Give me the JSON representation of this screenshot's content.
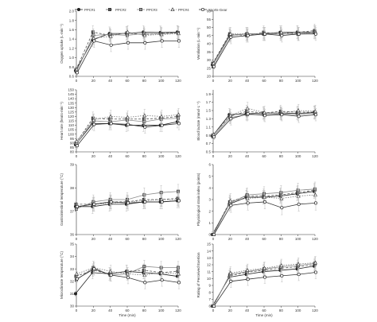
{
  "legend": {
    "entries": [
      {
        "label": "PPC#1",
        "marker": "filled-circle"
      },
      {
        "label": "PPC#2",
        "marker": "filled-square"
      },
      {
        "label": "PPC#3",
        "marker": "grey-square"
      },
      {
        "label": "PPC#4",
        "marker": "open-triangle"
      },
      {
        "label": "Sports-Gear",
        "marker": "open-circle"
      }
    ]
  },
  "chart_data": [
    {
      "type": "line",
      "ylabel": "Oxygen uptake (L·min⁻¹)",
      "xlabel": "",
      "x": [
        0,
        20,
        40,
        60,
        80,
        100,
        120
      ],
      "x_ticks": [
        "0",
        "20",
        "40",
        "60",
        "80",
        "100",
        "120"
      ],
      "ylim": [
        0.6,
        2.0
      ],
      "y_ticks": [
        "0.6",
        "0.8",
        "1.0",
        "1.2",
        "1.4",
        "1.6",
        "1.8",
        "2.0"
      ],
      "series": [
        {
          "name": "PPC#1",
          "values": [
            0.72,
            1.38,
            1.52,
            1.52,
            1.55,
            1.54,
            1.55
          ]
        },
        {
          "name": "PPC#2",
          "values": [
            0.74,
            1.55,
            1.48,
            1.53,
            1.5,
            1.52,
            1.54
          ]
        },
        {
          "name": "PPC#3",
          "values": [
            0.7,
            1.48,
            1.5,
            1.48,
            1.52,
            1.51,
            1.53
          ]
        },
        {
          "name": "PPC#4",
          "values": [
            0.75,
            1.42,
            1.46,
            1.55,
            1.48,
            1.5,
            1.52
          ]
        },
        {
          "name": "Sports-Gear",
          "values": [
            0.68,
            1.36,
            1.27,
            1.32,
            1.32,
            1.36,
            1.36
          ]
        }
      ]
    },
    {
      "type": "line",
      "ylabel": "Ventilation (L·min⁻¹)",
      "xlabel": "",
      "x": [
        0,
        20,
        40,
        60,
        80,
        100,
        120
      ],
      "x_ticks": [
        "0",
        "20",
        "40",
        "60",
        "80",
        "100",
        "120"
      ],
      "ylim": [
        20,
        60
      ],
      "y_ticks": [
        "20",
        "25",
        "30",
        "35",
        "40",
        "45",
        "50",
        "55",
        "60"
      ],
      "series": [
        {
          "name": "PPC#1",
          "values": [
            27,
            45,
            46,
            46,
            47,
            47,
            47
          ]
        },
        {
          "name": "PPC#2",
          "values": [
            28,
            46,
            45,
            47,
            46,
            47,
            48
          ]
        },
        {
          "name": "PPC#3",
          "values": [
            26,
            45,
            46,
            46,
            46,
            46,
            47
          ]
        },
        {
          "name": "PPC#4",
          "values": [
            28,
            46,
            46,
            46,
            47,
            46,
            47
          ]
        },
        {
          "name": "Sports-Gear",
          "values": [
            26,
            44,
            45,
            46,
            45,
            46,
            46
          ]
        }
      ]
    },
    {
      "type": "line",
      "ylabel": "Heart rate (beats·min⁻¹)",
      "xlabel": "",
      "x": [
        0,
        20,
        40,
        60,
        80,
        100,
        120
      ],
      "x_ticks": [
        "0",
        "20",
        "40",
        "60",
        "80",
        "100",
        "120"
      ],
      "ylim": [
        80,
        150
      ],
      "y_ticks": [
        "80",
        "85",
        "90",
        "95",
        "100",
        "105",
        "110",
        "115",
        "120",
        "125",
        "130",
        "135",
        "140",
        "145",
        "150"
      ],
      "series": [
        {
          "name": "PPC#1",
          "values": [
            88,
            112,
            112,
            110,
            110,
            110,
            114
          ]
        },
        {
          "name": "PPC#2",
          "values": [
            90,
            118,
            117,
            117,
            117,
            118,
            120
          ]
        },
        {
          "name": "PPC#3",
          "values": [
            89,
            115,
            114,
            116,
            114,
            117,
            118
          ]
        },
        {
          "name": "PPC#4",
          "values": [
            92,
            116,
            120,
            119,
            121,
            120,
            122
          ]
        },
        {
          "name": "Sports-Gear",
          "values": [
            87,
            111,
            112,
            111,
            108,
            110,
            112
          ]
        }
      ]
    },
    {
      "type": "line",
      "ylabel": "Blood lactate (mmol·L⁻¹)",
      "xlabel": "",
      "x": [
        0,
        20,
        40,
        60,
        80,
        100,
        120
      ],
      "x_ticks": [
        "0",
        "20",
        "40",
        "60",
        "80",
        "100",
        "120"
      ],
      "ylim": [
        0.5,
        2.0
      ],
      "y_ticks": [
        "0.5",
        "0.7",
        "0.9",
        "1.1",
        "1.3",
        "1.5",
        "1.7",
        "1.9"
      ],
      "series": [
        {
          "name": "PPC#1",
          "values": [
            0.88,
            1.4,
            1.42,
            1.44,
            1.44,
            1.43,
            1.45
          ]
        },
        {
          "name": "PPC#2",
          "values": [
            0.9,
            1.36,
            1.48,
            1.44,
            1.48,
            1.46,
            1.46
          ]
        },
        {
          "name": "PPC#3",
          "values": [
            0.87,
            1.33,
            1.4,
            1.4,
            1.42,
            1.4,
            1.44
          ]
        },
        {
          "name": "PPC#4",
          "values": [
            0.92,
            1.38,
            1.55,
            1.45,
            1.43,
            1.5,
            1.48
          ]
        },
        {
          "name": "Sports-Gear",
          "values": [
            0.86,
            1.3,
            1.42,
            1.38,
            1.4,
            1.36,
            1.4
          ]
        }
      ]
    },
    {
      "type": "line",
      "ylabel": "Gastrointestinal temperature (°C)",
      "xlabel": "",
      "x": [
        0,
        20,
        40,
        60,
        80,
        100,
        120
      ],
      "x_ticks": [
        "0",
        "20",
        "40",
        "60",
        "80",
        "100",
        "120"
      ],
      "ylim": [
        36,
        39
      ],
      "y_ticks": [
        "36",
        "37",
        "38",
        "39"
      ],
      "series": [
        {
          "name": "PPC#1",
          "values": [
            37.2,
            37.2,
            37.3,
            37.3,
            37.4,
            37.4,
            37.45
          ]
        },
        {
          "name": "PPC#2",
          "values": [
            37.3,
            37.3,
            37.4,
            37.4,
            37.5,
            37.5,
            37.55
          ]
        },
        {
          "name": "PPC#3",
          "values": [
            37.1,
            37.4,
            37.5,
            37.5,
            37.7,
            37.8,
            37.85
          ]
        },
        {
          "name": "PPC#4",
          "values": [
            37.2,
            37.3,
            37.35,
            37.4,
            37.45,
            37.5,
            37.5
          ]
        },
        {
          "name": "Sports-Gear",
          "values": [
            37.2,
            37.3,
            37.4,
            37.35,
            37.4,
            37.4,
            37.45
          ]
        }
      ]
    },
    {
      "type": "line",
      "ylabel": "Physiological strain index (points)",
      "xlabel": "",
      "x": [
        0,
        20,
        40,
        60,
        80,
        100,
        120
      ],
      "x_ticks": [
        "0",
        "20",
        "40",
        "60",
        "80",
        "100",
        "120"
      ],
      "ylim": [
        0,
        6
      ],
      "y_ticks": [
        "0",
        "1",
        "2",
        "3",
        "4",
        "5",
        "6"
      ],
      "series": [
        {
          "name": "PPC#1",
          "values": [
            0,
            2.6,
            3.2,
            3.2,
            3.3,
            3.5,
            3.7
          ]
        },
        {
          "name": "PPC#2",
          "values": [
            0,
            2.8,
            3.3,
            3.3,
            3.4,
            3.6,
            3.8
          ]
        },
        {
          "name": "PPC#3",
          "values": [
            0,
            2.7,
            3.4,
            3.5,
            3.6,
            3.8,
            3.9
          ]
        },
        {
          "name": "PPC#4",
          "values": [
            0,
            2.9,
            3.1,
            3.2,
            3.1,
            3.3,
            3.4
          ]
        },
        {
          "name": "Sports-Gear",
          "values": [
            0,
            2.5,
            2.7,
            2.8,
            2.3,
            2.6,
            2.7
          ]
        }
      ]
    },
    {
      "type": "line",
      "ylabel": "Microclimate temperature (°C)",
      "xlabel": "Time (min)",
      "x": [
        0,
        20,
        40,
        60,
        80,
        100,
        120
      ],
      "x_ticks": [
        "0",
        "20",
        "40",
        "60",
        "80",
        "100",
        "120"
      ],
      "ylim": [
        30,
        35
      ],
      "y_ticks": [
        "30",
        "31",
        "32",
        "33",
        "34",
        "35"
      ],
      "series": [
        {
          "name": "PPC#1",
          "values": [
            31.0,
            32.7,
            32.6,
            32.8,
            32.7,
            32.6,
            32.4
          ]
        },
        {
          "name": "PPC#2",
          "values": [
            32.4,
            32.9,
            32.6,
            32.8,
            32.9,
            32.7,
            32.8
          ]
        },
        {
          "name": "PPC#3",
          "values": [
            32.1,
            33.1,
            32.5,
            32.6,
            33.2,
            33.1,
            33.1
          ]
        },
        {
          "name": "PPC#4",
          "values": [
            32.6,
            33.1,
            32.8,
            32.6,
            32.5,
            32.7,
            32.6
          ]
        },
        {
          "name": "Sports-Gear",
          "values": [
            32.2,
            33.0,
            32.5,
            32.3,
            31.9,
            32.1,
            31.9
          ]
        }
      ]
    },
    {
      "type": "line",
      "ylabel": "Rating of Perceived Exertion",
      "xlabel": "Time (min)",
      "x": [
        0,
        20,
        40,
        60,
        80,
        100,
        120
      ],
      "x_ticks": [
        "0",
        "20",
        "40",
        "60",
        "80",
        "100",
        "120"
      ],
      "ylim": [
        6,
        15
      ],
      "y_ticks": [
        "6",
        "7",
        "8",
        "9",
        "10",
        "11",
        "12",
        "13",
        "14",
        "15"
      ],
      "series": [
        {
          "name": "PPC#1",
          "values": [
            6,
            10.2,
            10.6,
            11.0,
            11.2,
            11.4,
            11.8
          ]
        },
        {
          "name": "PPC#2",
          "values": [
            6,
            10.4,
            10.9,
            11.2,
            11.5,
            11.7,
            12.0
          ]
        },
        {
          "name": "PPC#3",
          "values": [
            6,
            10.6,
            11.0,
            11.4,
            11.7,
            11.9,
            12.2
          ]
        },
        {
          "name": "PPC#4",
          "values": [
            6,
            10.8,
            11.2,
            11.5,
            11.9,
            12.1,
            12.3
          ]
        },
        {
          "name": "Sports-Gear",
          "values": [
            6,
            9.6,
            9.9,
            10.2,
            10.4,
            10.6,
            10.9
          ]
        }
      ]
    }
  ]
}
